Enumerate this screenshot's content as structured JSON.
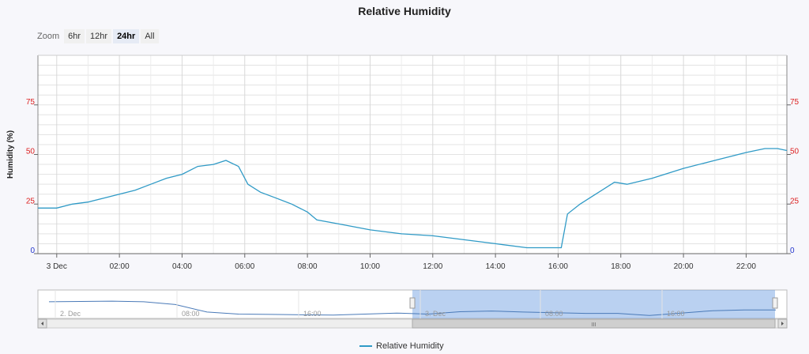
{
  "title": "Relative Humidity",
  "zoom": {
    "label": "Zoom",
    "buttons": [
      "6hr",
      "12hr",
      "24hr",
      "All"
    ],
    "selected": "24hr"
  },
  "legend": {
    "label": "Relative Humidity"
  },
  "navigator": {
    "labels": [
      "2. Dec",
      "08:00",
      "16:00",
      "3. Dec",
      "08:00",
      "16:00"
    ],
    "scroll_grip": "III"
  },
  "chart_data": {
    "type": "line",
    "title": "Relative Humidity",
    "ylabel": "Humidity (%)",
    "ylim": [
      0,
      100
    ],
    "y_ticks": [
      0,
      25,
      50,
      75
    ],
    "x_ticks": [
      "3 Dec",
      "02:00",
      "04:00",
      "06:00",
      "08:00",
      "10:00",
      "12:00",
      "14:00",
      "16:00",
      "18:00",
      "20:00",
      "22:00"
    ],
    "x_hours_range": [
      -0.6,
      23.3
    ],
    "series": [
      {
        "name": "Relative Humidity",
        "color": "#2f9ac6",
        "x_hours": [
          -0.6,
          0,
          0.5,
          1,
          1.5,
          2,
          2.5,
          3,
          3.5,
          4,
          4.5,
          5,
          5.4,
          5.8,
          6.1,
          6.5,
          7,
          7.5,
          8,
          8.3,
          9,
          10,
          11,
          12,
          13,
          14,
          15,
          15.9,
          16.1,
          16.3,
          16.7,
          17.2,
          17.8,
          18.2,
          19,
          20,
          21,
          22,
          22.6,
          23,
          23.3
        ],
        "values": [
          23,
          23,
          25,
          26,
          28,
          30,
          32,
          35,
          38,
          40,
          44,
          45,
          47,
          44,
          35,
          31,
          28,
          25,
          21,
          17,
          15,
          12,
          10,
          9,
          7,
          5,
          3,
          3,
          3,
          20,
          25,
          30,
          36,
          35,
          38,
          43,
          47,
          51,
          53,
          53,
          52
        ]
      }
    ],
    "navigator_values": [
      58,
      59,
      60,
      58,
      50,
      28,
      22,
      21,
      20,
      19,
      22,
      25,
      22,
      29,
      31,
      28,
      26,
      24,
      24,
      18,
      25,
      32,
      34,
      34
    ]
  }
}
